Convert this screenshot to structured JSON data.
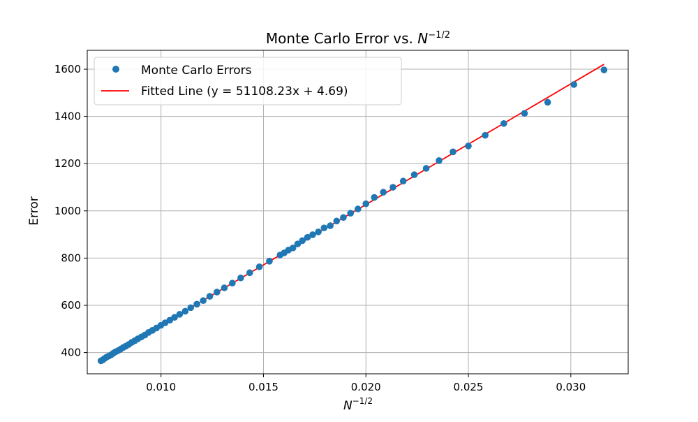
{
  "chart_data": {
    "type": "scatter",
    "title": "Monte Carlo Error vs. N^{-1/2}",
    "title_parts": {
      "text": "Monte Carlo Error vs. ",
      "base": "N",
      "exp": "−1/2"
    },
    "xlabel_parts": {
      "base": "N",
      "exp": "−1/2"
    },
    "ylabel": "Error",
    "xlim": [
      0.0064,
      0.0328
    ],
    "ylim": [
      310,
      1680
    ],
    "xticks": [
      0.01,
      0.015,
      0.02,
      0.025,
      0.03
    ],
    "xtick_labels": [
      "0.010",
      "0.015",
      "0.020",
      "0.025",
      "0.030"
    ],
    "yticks": [
      400,
      600,
      800,
      1000,
      1200,
      1400,
      1600
    ],
    "ytick_labels": [
      "400",
      "600",
      "800",
      "1000",
      "1200",
      "1400",
      "1600"
    ],
    "grid": true,
    "legend_position": "top-left",
    "series": [
      {
        "name": "Monte Carlo Errors",
        "kind": "scatter",
        "color": "#1f77b4",
        "x": [
          0.00707,
          0.00716,
          0.00725,
          0.00735,
          0.00745,
          0.00756,
          0.00767,
          0.00778,
          0.0079,
          0.00802,
          0.00815,
          0.00828,
          0.00842,
          0.00857,
          0.00872,
          0.00887,
          0.00904,
          0.00921,
          0.00939,
          0.00958,
          0.00978,
          0.00999,
          0.0102,
          0.01043,
          0.01066,
          0.01091,
          0.01118,
          0.01145,
          0.01175,
          0.01206,
          0.01238,
          0.01273,
          0.01309,
          0.01348,
          0.01389,
          0.01433,
          0.0148,
          0.01529,
          0.01581,
          0.01601,
          0.01622,
          0.01644,
          0.01667,
          0.0169,
          0.01715,
          0.0174,
          0.01768,
          0.01796,
          0.01826,
          0.01857,
          0.0189,
          0.01925,
          0.01961,
          0.02,
          0.02041,
          0.02085,
          0.02132,
          0.02182,
          0.02236,
          0.02294,
          0.02357,
          0.02425,
          0.025,
          0.02582,
          0.02673,
          0.02774,
          0.02887,
          0.03015,
          0.03162
        ],
        "y": [
          365,
          369,
          375,
          381,
          385,
          390,
          397,
          403,
          408,
          414,
          421,
          427,
          434,
          443,
          450,
          458,
          466,
          474,
          485,
          494,
          504,
          515,
          526,
          537,
          549,
          562,
          575,
          590,
          605,
          620,
          638,
          656,
          674,
          694,
          716,
          738,
          763,
          787,
          813,
          822,
          834,
          843,
          860,
          874,
          888,
          899,
          911,
          928,
          937,
          957,
          972,
          990,
          1008,
          1030,
          1057,
          1079,
          1100,
          1126,
          1153,
          1180,
          1213,
          1250,
          1275,
          1320,
          1370,
          1413,
          1460,
          1535,
          1597
        ]
      },
      {
        "name": "Fitted Line (y = 51108.23x + 4.69)",
        "kind": "line",
        "color": "#ff0000",
        "slope": 51108.23,
        "intercept": 4.69,
        "x": [
          0.00707,
          0.03162
        ],
        "y": [
          366.0,
          1620.7
        ]
      }
    ]
  }
}
